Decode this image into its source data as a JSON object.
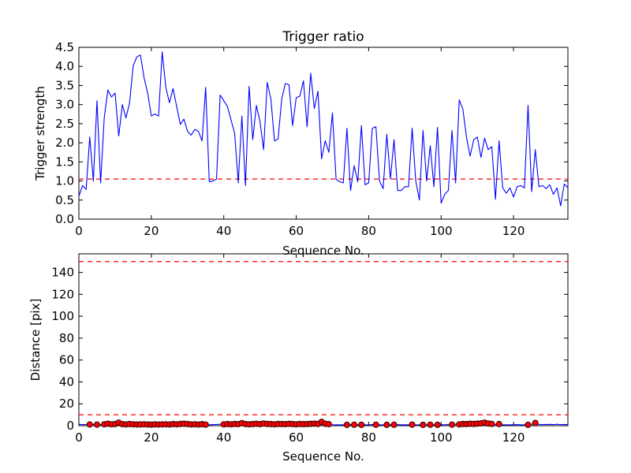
{
  "chart_data": [
    {
      "type": "line",
      "title": "Trigger ratio",
      "xlabel": "Sequence No.",
      "ylabel": "Trigger strength",
      "xlim": [
        0,
        135
      ],
      "ylim": [
        0,
        4.5
      ],
      "xticks": [
        0,
        20,
        40,
        60,
        80,
        100,
        120
      ],
      "yticks": [
        0.0,
        0.5,
        1.0,
        1.5,
        2.0,
        2.5,
        3.0,
        3.5,
        4.0,
        4.5
      ],
      "grid": false,
      "colors": {
        "series": "#0000ff",
        "threshold": "#ff0000"
      },
      "threshold_lines": [
        1.05
      ],
      "series": [
        {
          "values": [
            0.6,
            0.88,
            0.78,
            2.15,
            1.0,
            3.1,
            0.95,
            2.65,
            3.38,
            3.2,
            3.3,
            2.18,
            3.0,
            2.65,
            3.05,
            4.02,
            4.25,
            4.3,
            3.7,
            3.3,
            2.7,
            2.75,
            2.7,
            4.38,
            3.45,
            3.05,
            3.42,
            2.95,
            2.48,
            2.62,
            2.3,
            2.2,
            2.35,
            2.3,
            2.05,
            3.45,
            0.98,
            1.0,
            1.05,
            3.25,
            3.1,
            2.95,
            2.6,
            2.25,
            0.95,
            2.7,
            0.88,
            3.48,
            2.08,
            2.98,
            2.55,
            1.82,
            3.58,
            3.15,
            2.05,
            2.1,
            3.15,
            3.55,
            3.52,
            2.45,
            3.18,
            3.22,
            3.62,
            2.42,
            3.82,
            2.9,
            3.35,
            1.58,
            2.05,
            1.75,
            2.78,
            1.05,
            0.98,
            0.95,
            2.38,
            0.75,
            1.4,
            0.98,
            2.45,
            0.9,
            0.95,
            2.38,
            2.42,
            1.0,
            0.8,
            2.22,
            1.05,
            2.08,
            0.75,
            0.75,
            0.85,
            0.85,
            2.38,
            1.0,
            0.5,
            2.32,
            1.0,
            1.92,
            0.85,
            2.4,
            0.42,
            0.65,
            0.75,
            2.32,
            0.95,
            3.12,
            2.88,
            2.15,
            1.65,
            2.08,
            2.15,
            1.62,
            2.12,
            1.82,
            1.9,
            0.52,
            2.05,
            0.82,
            0.68,
            0.82,
            0.58,
            0.85,
            0.88,
            0.82,
            2.98,
            0.72,
            1.82,
            0.85,
            0.88,
            0.8,
            0.9,
            0.65,
            0.82,
            0.35,
            0.92,
            0.82
          ]
        }
      ]
    },
    {
      "type": "scatter",
      "xlabel": "Sequence No.",
      "ylabel": "Distance [pix]",
      "xlim": [
        0,
        135
      ],
      "ylim": [
        0,
        157
      ],
      "xticks": [
        0,
        20,
        40,
        60,
        80,
        100,
        120
      ],
      "yticks": [
        0,
        20,
        40,
        60,
        80,
        100,
        120,
        140
      ],
      "grid": false,
      "colors": {
        "line": "#0000ff",
        "marker": "#ff0000",
        "threshold": "#ff0000"
      },
      "threshold_lines": [
        150,
        10
      ],
      "line_values": [
        1.2,
        1.0,
        1.1,
        1.3,
        1.1,
        1.2,
        1.0,
        1.5,
        1.8,
        1.4,
        1.6,
        2.2,
        1.5,
        1.3,
        1.6,
        1.4,
        1.2,
        1.1,
        1.4,
        1.2,
        1.0,
        1.1,
        1.3,
        1.2,
        1.1,
        1.4,
        1.6,
        1.3,
        1.2,
        1.7,
        1.4,
        1.1,
        1.2,
        1.3,
        1.0,
        1.2,
        0.8,
        1.0,
        1.1,
        1.3,
        1.5,
        1.4,
        1.6,
        1.2,
        1.0,
        1.8,
        1.3,
        1.5,
        1.2,
        1.4,
        1.9,
        1.3,
        1.6,
        1.2,
        1.5,
        1.7,
        1.3,
        1.4,
        1.6,
        1.3,
        1.5,
        1.2,
        1.4,
        1.6,
        1.8,
        1.5,
        2.0,
        3.5,
        1.8,
        1.4,
        0.9,
        0.8,
        0.9,
        0.8,
        0.9,
        1.0,
        0.8,
        0.9,
        1.0,
        0.8,
        0.9,
        1.0,
        0.9,
        0.8,
        0.9,
        1.1,
        0.8,
        0.9,
        1.0,
        0.8,
        0.9,
        0.8,
        1.1,
        0.9,
        0.8,
        1.0,
        0.9,
        0.8,
        0.9,
        1.0,
        0.8,
        0.9,
        1.0,
        1.1,
        1.3,
        1.5,
        1.8,
        2.0,
        1.6,
        1.8,
        1.5,
        1.8,
        2.2,
        1.9,
        1.5,
        0.9,
        1.4,
        0.8,
        0.9,
        0.8,
        0.9,
        1.0,
        0.8,
        0.9,
        0.9,
        1.3,
        2.0,
        1.2,
        1.0,
        1.1,
        1.2,
        1.0,
        1.3,
        1.0,
        1.1,
        1.0
      ],
      "points": {
        "x": [
          3,
          5,
          7,
          8,
          9,
          10,
          11,
          12,
          13,
          14,
          15,
          16,
          17,
          18,
          19,
          20,
          21,
          22,
          23,
          24,
          25,
          26,
          27,
          28,
          29,
          30,
          31,
          32,
          33,
          34,
          35,
          40,
          41,
          42,
          43,
          44,
          45,
          46,
          47,
          48,
          49,
          50,
          51,
          52,
          53,
          54,
          55,
          56,
          57,
          58,
          59,
          60,
          61,
          62,
          63,
          64,
          65,
          66,
          67,
          68,
          69,
          74,
          76,
          78,
          82,
          85,
          87,
          92,
          95,
          97,
          99,
          103,
          105,
          106,
          107,
          108,
          109,
          110,
          111,
          112,
          113,
          114,
          116,
          124,
          126
        ],
        "y": [
          1.1,
          1.0,
          1.3,
          1.8,
          1.3,
          1.5,
          2.8,
          1.4,
          1.2,
          1.5,
          1.3,
          1.1,
          1.2,
          1.3,
          1.1,
          1.0,
          1.2,
          1.1,
          1.2,
          1.3,
          1.1,
          1.5,
          1.3,
          1.6,
          1.8,
          1.5,
          1.2,
          1.3,
          1.1,
          1.4,
          1.0,
          1.2,
          1.5,
          1.3,
          1.6,
          1.4,
          2.3,
          1.5,
          1.3,
          1.5,
          1.8,
          1.4,
          2.0,
          1.6,
          1.5,
          1.3,
          1.6,
          1.5,
          1.4,
          1.7,
          1.5,
          1.3,
          1.6,
          1.4,
          1.5,
          1.7,
          1.9,
          1.6,
          3.5,
          1.8,
          1.4,
          0.8,
          0.9,
          0.8,
          0.9,
          0.8,
          0.9,
          1.0,
          0.8,
          0.9,
          0.8,
          1.0,
          1.2,
          1.6,
          1.5,
          1.8,
          1.6,
          1.9,
          2.2,
          2.8,
          2.0,
          1.6,
          1.5,
          0.8,
          2.5
        ]
      }
    }
  ]
}
